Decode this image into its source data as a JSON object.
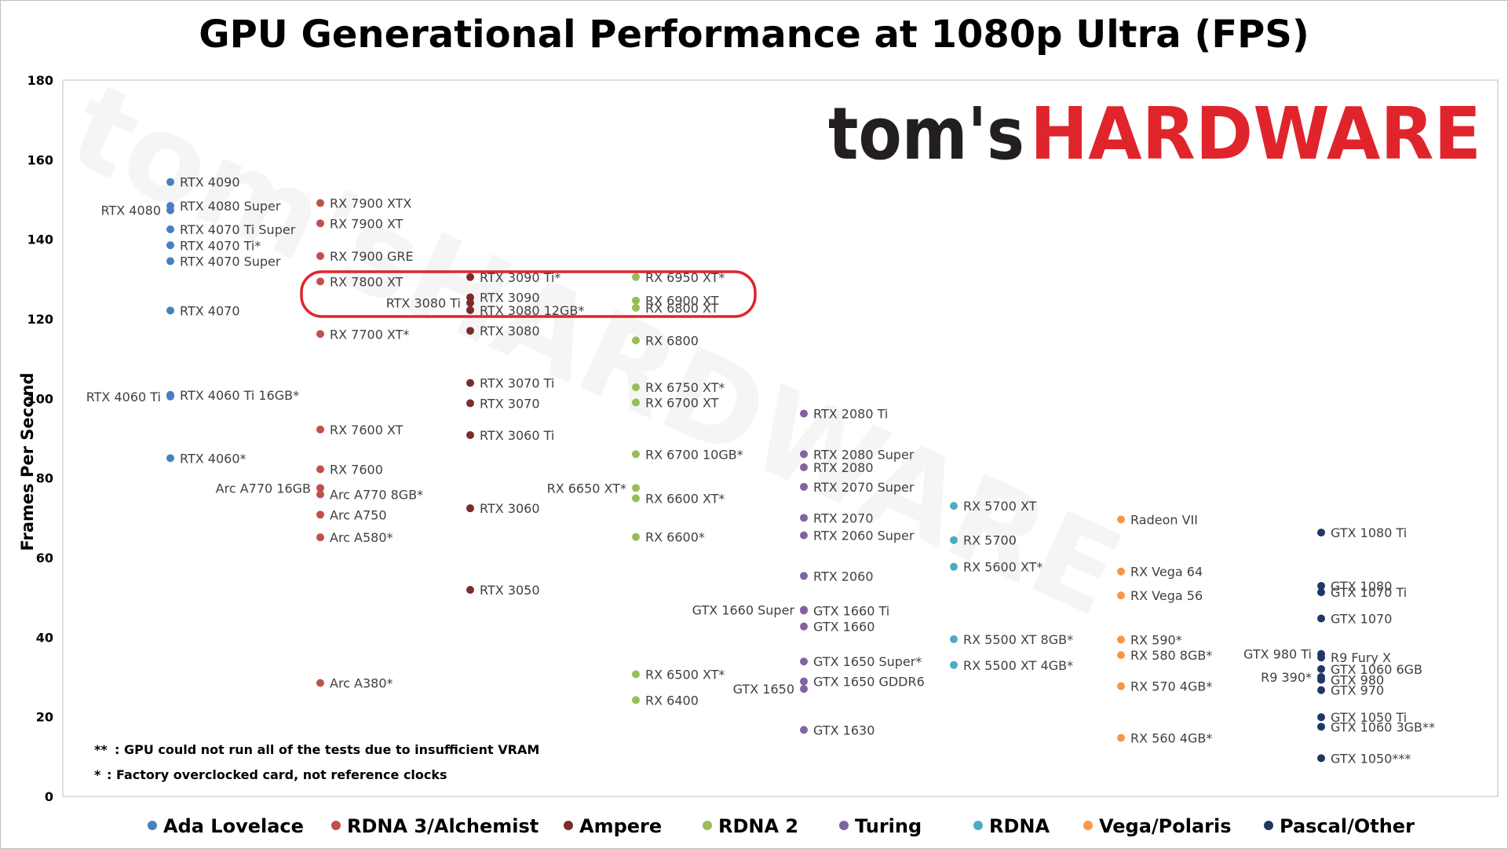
{
  "colors": {
    "Ada Lovelace": "#4a7fc1",
    "RDNA 3/Alchemist": "#c0504d",
    "Ampere": "#7b2c2c",
    "RDNA 2": "#9bbb59",
    "Turing": "#8064a2",
    "RDNA": "#4bacc6",
    "Vega/Polaris": "#f79646",
    "Pascal/Other": "#1f3864",
    "highlight": "#e0242b"
  },
  "logo": {
    "text_dark": "tom's",
    "text_red": "HARDWARE"
  },
  "notes": [
    {
      "mark": "**",
      "text": ": GPU could not run all of the tests due to insufficient VRAM"
    },
    {
      "mark": "*",
      "text": ": Factory overclocked card, not reference clocks"
    }
  ],
  "chart_data": {
    "type": "scatter",
    "title": "GPU Generational Performance at 1080p Ultra (FPS)",
    "ylabel": "Frames Per Second",
    "xlabel": "",
    "ylim": [
      0,
      180
    ],
    "yticks": [
      0,
      20,
      40,
      60,
      80,
      100,
      120,
      140,
      160,
      180
    ],
    "grid": false,
    "legend_position": "bottom",
    "categories": [
      "Ada Lovelace",
      "RDNA 3/Alchemist",
      "Ampere",
      "RDNA 2",
      "Turing",
      "RDNA",
      "Vega/Polaris",
      "Pascal/Other"
    ],
    "series": [
      {
        "name": "Ada Lovelace",
        "points": [
          {
            "label": "RTX 4090",
            "y": 154.4
          },
          {
            "label": "RTX 4080 Super",
            "y": 148.4
          },
          {
            "label": "RTX 4080",
            "y": 147.3,
            "side": "left"
          },
          {
            "label": "RTX 4070 Ti Super",
            "y": 142.5
          },
          {
            "label": "RTX 4070 Ti*",
            "y": 138.5
          },
          {
            "label": "RTX 4070 Super",
            "y": 134.5
          },
          {
            "label": "RTX 4070",
            "y": 122.1
          },
          {
            "label": "RTX 4060 Ti 16GB*",
            "y": 100.9
          },
          {
            "label": "RTX 4060 Ti",
            "y": 100.5,
            "side": "left"
          },
          {
            "label": "RTX 4060*",
            "y": 85.0
          }
        ]
      },
      {
        "name": "RDNA 3/Alchemist",
        "points": [
          {
            "label": "RX 7900 XTX",
            "y": 149.1
          },
          {
            "label": "RX 7900 XT",
            "y": 144.0
          },
          {
            "label": "RX 7900 GRE",
            "y": 135.8
          },
          {
            "label": "RX 7800 XT",
            "y": 129.4
          },
          {
            "label": "RX 7700 XT*",
            "y": 116.2
          },
          {
            "label": "RX 7600 XT",
            "y": 92.2
          },
          {
            "label": "RX 7600",
            "y": 82.2
          },
          {
            "label": "Arc A770 16GB",
            "y": 77.5,
            "side": "left"
          },
          {
            "label": "Arc A770 8GB*",
            "y": 75.9
          },
          {
            "label": "Arc A750",
            "y": 70.8
          },
          {
            "label": "Arc A580*",
            "y": 65.1
          },
          {
            "label": "Arc A380*",
            "y": 28.5
          }
        ]
      },
      {
        "name": "Ampere",
        "points": [
          {
            "label": "RTX 3090 Ti*",
            "y": 130.5
          },
          {
            "label": "RTX 3090",
            "y": 125.4
          },
          {
            "label": "RTX 3080 Ti",
            "y": 124.0,
            "side": "left"
          },
          {
            "label": "RTX 3080 12GB*",
            "y": 122.2
          },
          {
            "label": "RTX 3080",
            "y": 117.0
          },
          {
            "label": "RTX 3070 Ti",
            "y": 103.9
          },
          {
            "label": "RTX 3070",
            "y": 98.8
          },
          {
            "label": "RTX 3060 Ti",
            "y": 90.8
          },
          {
            "label": "RTX 3060",
            "y": 72.4
          },
          {
            "label": "RTX 3050",
            "y": 51.9
          }
        ]
      },
      {
        "name": "RDNA 2",
        "points": [
          {
            "label": "RX 6950 XT*",
            "y": 130.5
          },
          {
            "label": "RX 6900 XT",
            "y": 124.6
          },
          {
            "label": "RX 6800 XT",
            "y": 122.8
          },
          {
            "label": "RX 6800",
            "y": 114.6
          },
          {
            "label": "RX 6750 XT*",
            "y": 102.8
          },
          {
            "label": "RX 6700 XT",
            "y": 99.0
          },
          {
            "label": "RX 6700 10GB*",
            "y": 86.0
          },
          {
            "label": "RX 6650 XT*",
            "y": 77.5,
            "side": "left"
          },
          {
            "label": "RX 6600 XT*",
            "y": 74.9
          },
          {
            "label": "RX 6600*",
            "y": 65.2
          },
          {
            "label": "RX 6500 XT*",
            "y": 30.7
          },
          {
            "label": "RX 6400",
            "y": 24.2
          }
        ]
      },
      {
        "name": "Turing",
        "points": [
          {
            "label": "RTX 2080 Ti",
            "y": 96.2
          },
          {
            "label": "RTX 2080 Super",
            "y": 86.0
          },
          {
            "label": "RTX 2080",
            "y": 82.7
          },
          {
            "label": "RTX 2070 Super",
            "y": 77.8
          },
          {
            "label": "RTX 2070",
            "y": 70.0
          },
          {
            "label": "RTX 2060 Super",
            "y": 65.6
          },
          {
            "label": "RTX 2060",
            "y": 55.4
          },
          {
            "label": "GTX 1660 Ti",
            "y": 46.7
          },
          {
            "label": "GTX 1660 Super",
            "y": 46.9,
            "side": "left"
          },
          {
            "label": "GTX 1660",
            "y": 42.7
          },
          {
            "label": "GTX 1650 Super*",
            "y": 33.9
          },
          {
            "label": "GTX 1650 GDDR6",
            "y": 28.9
          },
          {
            "label": "GTX 1650",
            "y": 27.0,
            "side": "left"
          },
          {
            "label": "GTX 1630",
            "y": 16.7
          }
        ]
      },
      {
        "name": "RDNA",
        "points": [
          {
            "label": "RX 5700 XT",
            "y": 73.0
          },
          {
            "label": "RX 5700",
            "y": 64.4
          },
          {
            "label": "RX 5600 XT*",
            "y": 57.7
          },
          {
            "label": "RX 5500 XT 8GB*",
            "y": 39.5
          },
          {
            "label": "RX 5500 XT 4GB*",
            "y": 33.0
          }
        ]
      },
      {
        "name": "Vega/Polaris",
        "points": [
          {
            "label": "Radeon VII",
            "y": 69.6
          },
          {
            "label": "RX Vega 64",
            "y": 56.5
          },
          {
            "label": "RX Vega 56",
            "y": 50.5
          },
          {
            "label": "RX 590*",
            "y": 39.4
          },
          {
            "label": "RX 580 8GB*",
            "y": 35.5
          },
          {
            "label": "RX 570 4GB*",
            "y": 27.7
          },
          {
            "label": "RX 560 4GB*",
            "y": 14.7
          }
        ]
      },
      {
        "name": "Pascal/Other",
        "points": [
          {
            "label": "GTX 1080 Ti",
            "y": 66.3
          },
          {
            "label": "GTX 1080",
            "y": 52.9
          },
          {
            "label": "GTX 1070 Ti",
            "y": 51.3
          },
          {
            "label": "GTX 1070",
            "y": 44.7
          },
          {
            "label": "GTX 980 Ti",
            "y": 35.8,
            "side": "left"
          },
          {
            "label": "R9 Fury X",
            "y": 34.9
          },
          {
            "label": "GTX 1060 6GB",
            "y": 32.0
          },
          {
            "label": "R9 390*",
            "y": 30.0,
            "side": "left"
          },
          {
            "label": "GTX 980",
            "y": 29.3
          },
          {
            "label": "GTX 970",
            "y": 26.7
          },
          {
            "label": "GTX 1050 Ti",
            "y": 19.9
          },
          {
            "label": "GTX 1060 3GB**",
            "y": 17.5
          },
          {
            "label": "GTX 1050***",
            "y": 9.6
          }
        ]
      }
    ]
  }
}
